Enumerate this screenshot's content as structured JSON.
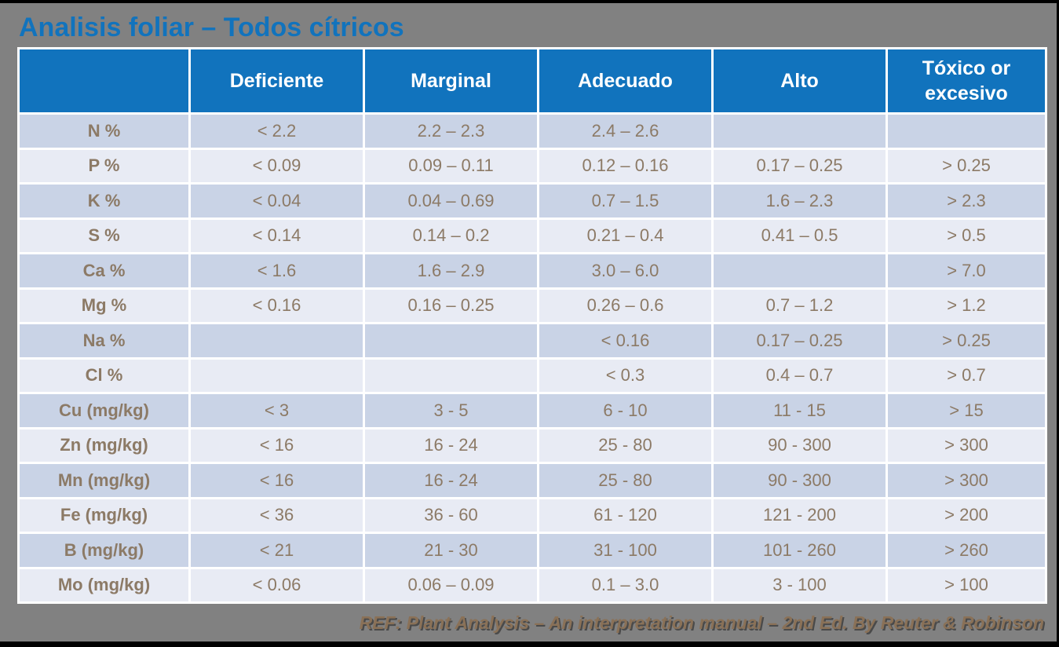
{
  "title": "Analisis foliar – Todos cítricos",
  "table": {
    "columns": [
      "",
      "Deficiente",
      "Marginal",
      "Adecuado",
      "Alto",
      "Tóxico or excesivo"
    ],
    "rows": [
      {
        "label": "N %",
        "values": [
          "< 2.2",
          "2.2 – 2.3",
          "2.4 – 2.6",
          "",
          ""
        ]
      },
      {
        "label": "P %",
        "values": [
          "< 0.09",
          "0.09 – 0.11",
          "0.12 – 0.16",
          "0.17 – 0.25",
          "> 0.25"
        ]
      },
      {
        "label": "K %",
        "values": [
          "< 0.04",
          "0.04 – 0.69",
          "0.7 – 1.5",
          "1.6 – 2.3",
          "> 2.3"
        ]
      },
      {
        "label": "S %",
        "values": [
          "< 0.14",
          "0.14 – 0.2",
          "0.21 – 0.4",
          "0.41 – 0.5",
          "> 0.5"
        ]
      },
      {
        "label": "Ca %",
        "values": [
          "< 1.6",
          "1.6 – 2.9",
          "3.0 – 6.0",
          "",
          "> 7.0"
        ]
      },
      {
        "label": "Mg %",
        "values": [
          "< 0.16",
          "0.16 – 0.25",
          "0.26 – 0.6",
          "0.7 – 1.2",
          "> 1.2"
        ]
      },
      {
        "label": "Na %",
        "values": [
          "",
          "",
          "< 0.16",
          "0.17 – 0.25",
          "> 0.25"
        ]
      },
      {
        "label": "Cl %",
        "values": [
          "",
          "",
          "< 0.3",
          "0.4 – 0.7",
          "> 0.7"
        ]
      },
      {
        "label": "Cu (mg/kg)",
        "values": [
          "< 3",
          "3 - 5",
          "6 - 10",
          "11 - 15",
          "> 15"
        ]
      },
      {
        "label": "Zn (mg/kg)",
        "values": [
          "< 16",
          "16 - 24",
          "25 - 80",
          "90 - 300",
          "> 300"
        ]
      },
      {
        "label": "Mn (mg/kg)",
        "values": [
          "< 16",
          "16 - 24",
          "25 - 80",
          "90 - 300",
          "> 300"
        ]
      },
      {
        "label": "Fe (mg/kg)",
        "values": [
          "< 36",
          "36 - 60",
          "61 - 120",
          "121 - 200",
          "> 200"
        ]
      },
      {
        "label": "B (mg/kg)",
        "values": [
          "< 21",
          "21 - 30",
          "31 - 100",
          "101 - 260",
          "> 260"
        ]
      },
      {
        "label": "Mo (mg/kg)",
        "values": [
          "< 0.06",
          "0.06 – 0.09",
          "0.1 – 3.0",
          "3 - 100",
          "> 100"
        ]
      }
    ]
  },
  "footer": "REF: Plant Analysis – An interpretation manual – 2nd Ed. By Reuter & Robinson",
  "colors": {
    "background": "#818181",
    "header_blue": "#1173BD",
    "title_blue": "#1173BD",
    "row_dark": "#C9D3E6",
    "row_light": "#E8EBF4",
    "cell_text": "#8C7A66",
    "footer_text": "#8A7157",
    "grid": "#FFFFFF"
  }
}
